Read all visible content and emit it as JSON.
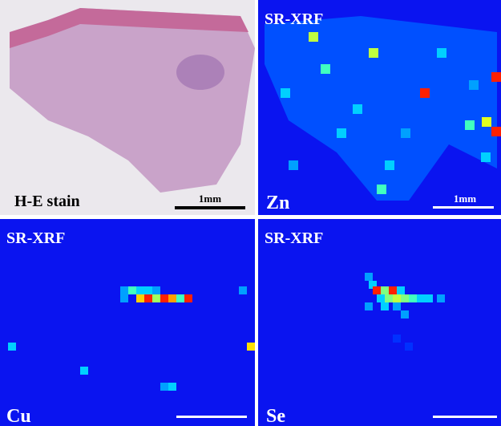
{
  "panels": [
    {
      "title": "H-E stain",
      "scale_label": "1mm"
    },
    {
      "header": "SR-XRF",
      "element": "Zn",
      "scale_label": "1mm"
    },
    {
      "header": "SR-XRF",
      "element": "Cu"
    },
    {
      "header": "SR-XRF",
      "element": "Se"
    }
  ]
}
